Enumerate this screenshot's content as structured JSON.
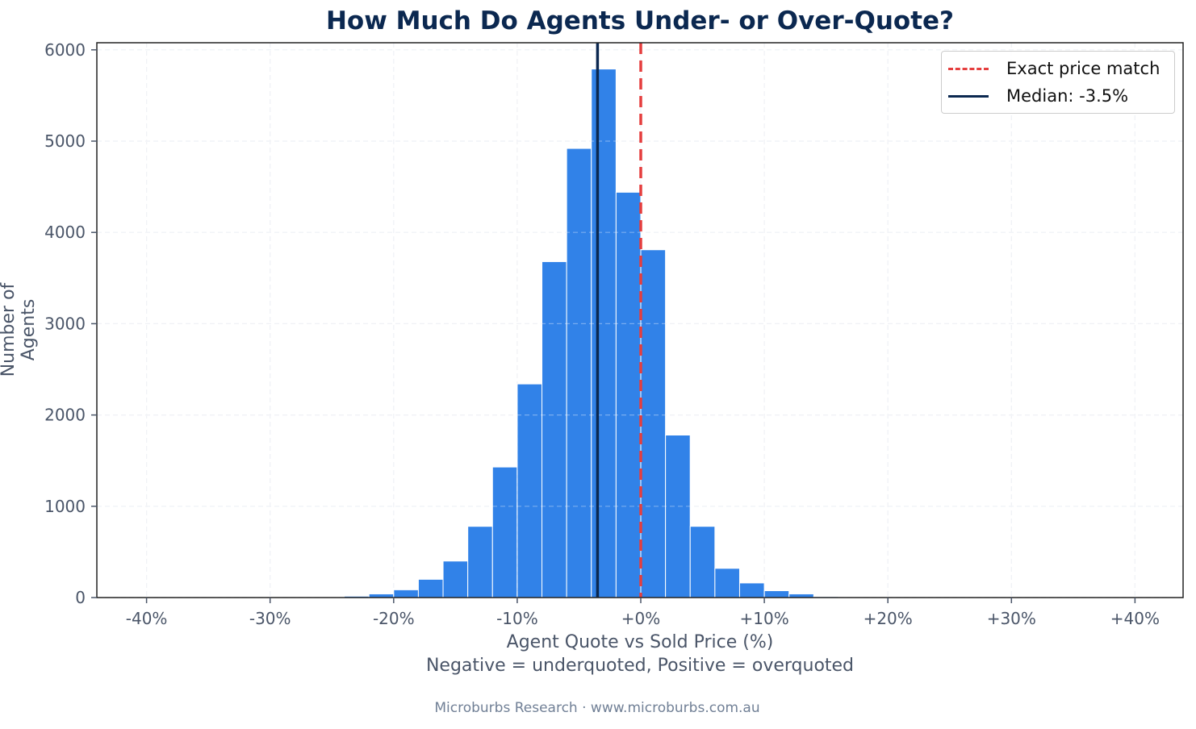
{
  "chart_data": {
    "type": "bar",
    "title": "How Much Do Agents Under- or Over-Quote?",
    "xlabel": "Agent Quote vs Sold Price (%)",
    "xlabel_sub": "Negative = underquoted, Positive = overquoted",
    "ylabel": "Number of Agents",
    "xlim": [
      -44,
      44
    ],
    "ylim": [
      0,
      6080
    ],
    "x_ticks": [
      "-40%",
      "-30%",
      "-20%",
      "-10%",
      "+0%",
      "+10%",
      "+20%",
      "+30%",
      "+40%"
    ],
    "y_ticks": [
      "0",
      "1000",
      "2000",
      "3000",
      "4000",
      "5000",
      "6000"
    ],
    "bin_width_pct": 2,
    "bins": [
      {
        "start": -26,
        "end": -24,
        "count": 5
      },
      {
        "start": -24,
        "end": -22,
        "count": 15
      },
      {
        "start": -22,
        "end": -20,
        "count": 40
      },
      {
        "start": -20,
        "end": -18,
        "count": 85
      },
      {
        "start": -18,
        "end": -16,
        "count": 200
      },
      {
        "start": -16,
        "end": -14,
        "count": 400
      },
      {
        "start": -14,
        "end": -12,
        "count": 780
      },
      {
        "start": -12,
        "end": -10,
        "count": 1430
      },
      {
        "start": -10,
        "end": -8,
        "count": 2340
      },
      {
        "start": -8,
        "end": -6,
        "count": 3680
      },
      {
        "start": -6,
        "end": -4,
        "count": 4920
      },
      {
        "start": -4,
        "end": -2,
        "count": 5790
      },
      {
        "start": -2,
        "end": 0,
        "count": 4440
      },
      {
        "start": 0,
        "end": 2,
        "count": 3810
      },
      {
        "start": 2,
        "end": 4,
        "count": 1780
      },
      {
        "start": 4,
        "end": 6,
        "count": 780
      },
      {
        "start": 6,
        "end": 8,
        "count": 320
      },
      {
        "start": 8,
        "end": 10,
        "count": 160
      },
      {
        "start": 10,
        "end": 12,
        "count": 75
      },
      {
        "start": 12,
        "end": 14,
        "count": 40
      },
      {
        "start": 14,
        "end": 16,
        "count": 10
      },
      {
        "start": 16,
        "end": 18,
        "count": 5
      }
    ],
    "reference_lines": [
      {
        "label": "Exact price match",
        "x": 0,
        "style": "dashed",
        "color": "#e53e3e"
      },
      {
        "label": "Median: -3.5%",
        "x": -3.5,
        "style": "solid",
        "color": "#0b2850"
      }
    ],
    "bar_color": "#3182e8",
    "grid": true,
    "legend_position": "upper right"
  },
  "legend": {
    "items": [
      {
        "label": "Exact price match"
      },
      {
        "label": "Median: -3.5%"
      }
    ]
  },
  "footer": "Microburbs Research · www.microburbs.com.au"
}
